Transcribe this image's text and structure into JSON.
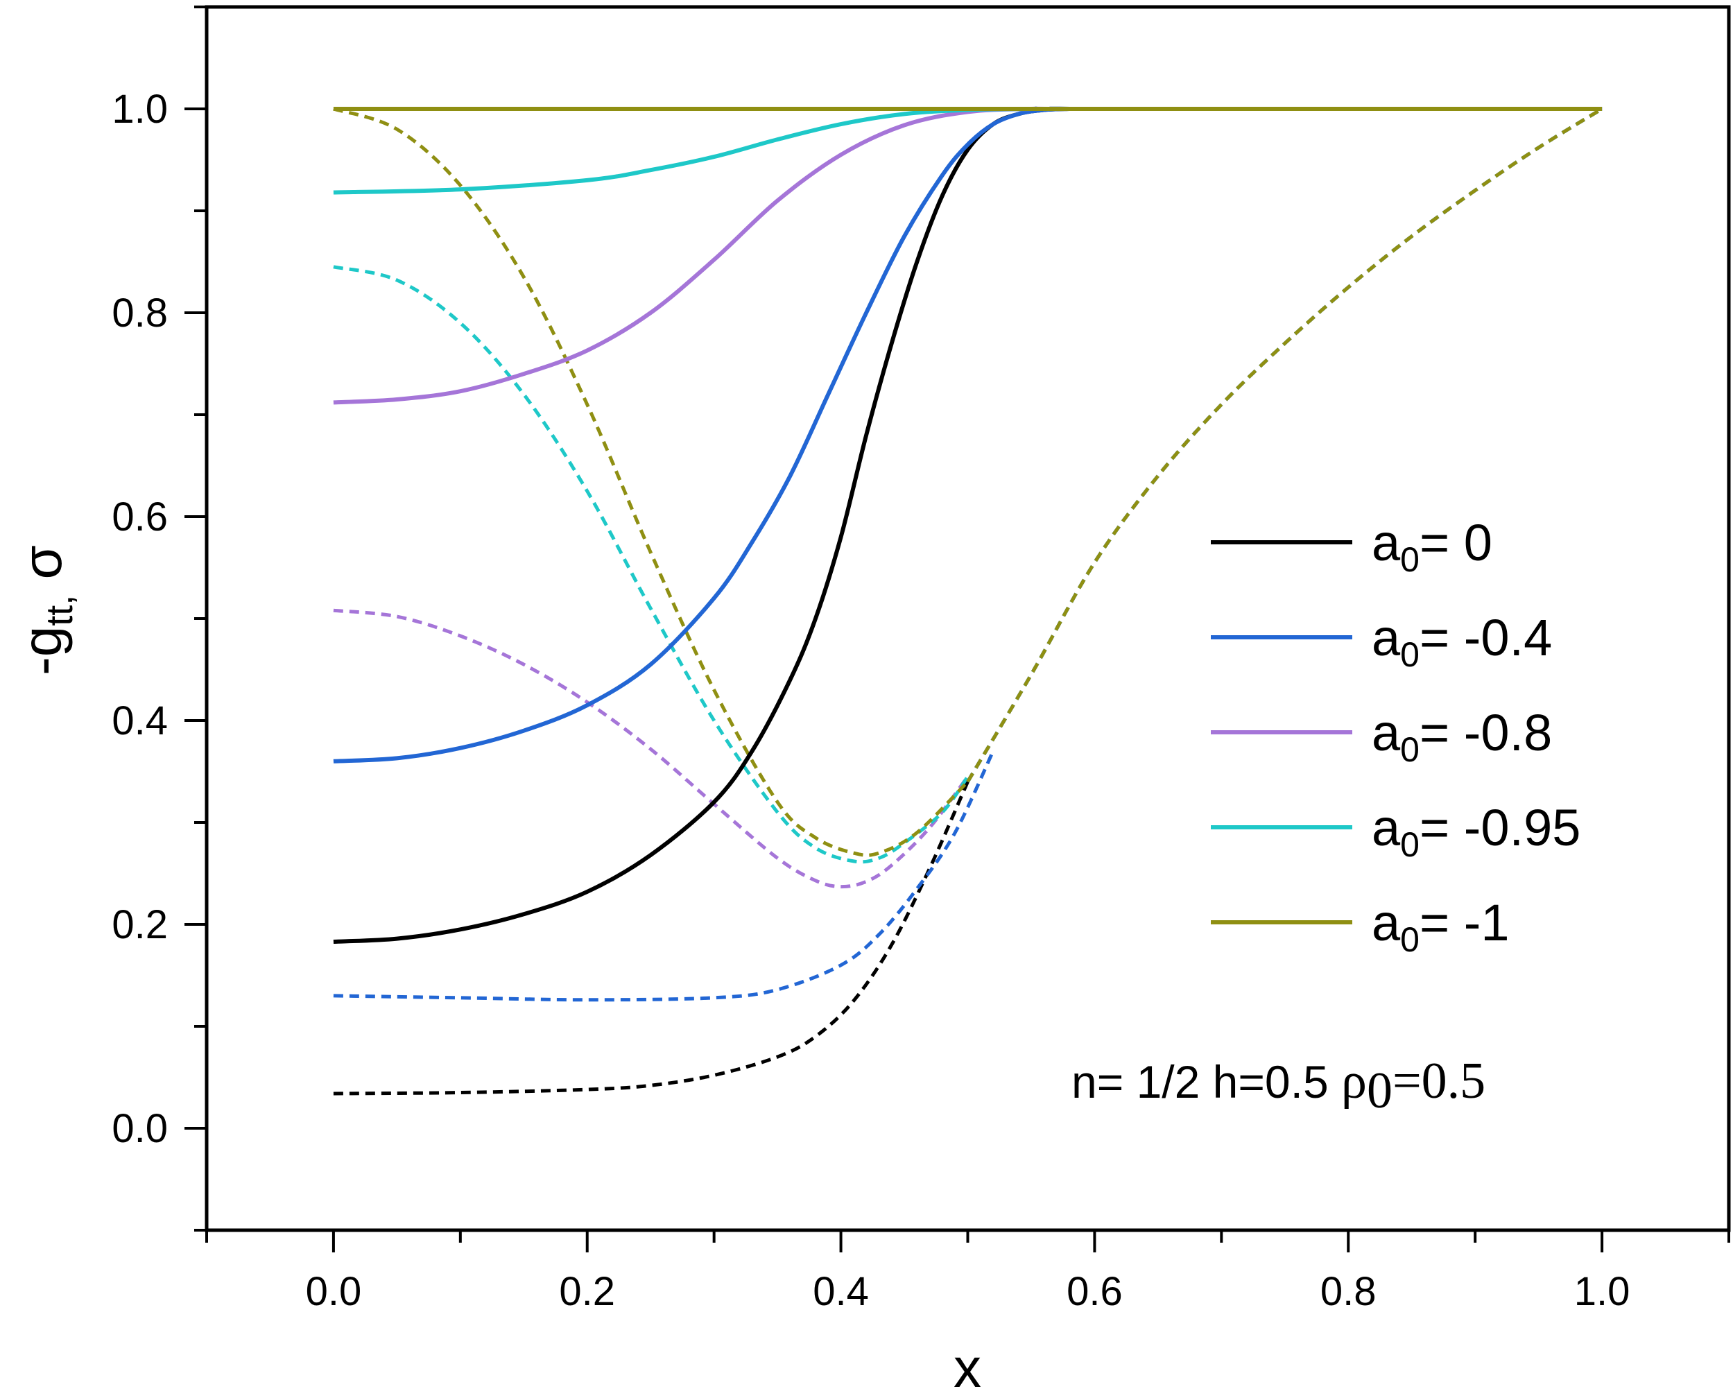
{
  "chart_data": {
    "type": "line",
    "title": "",
    "xlabel": "x",
    "ylabel": {
      "main": "-g",
      "sub": "tt,",
      "tail": " σ"
    },
    "xlim": [
      -0.1,
      1.1
    ],
    "ylim": [
      -0.1,
      1.1
    ],
    "xticks": [
      "0.0",
      "0.2",
      "0.4",
      "0.6",
      "0.8",
      "1.0"
    ],
    "yticks": [
      "0.0",
      "0.2",
      "0.4",
      "0.6",
      "0.8",
      "1.0"
    ],
    "annotation": {
      "prefix": "n= 1/2 h=0.5 ",
      "rho": "ρ",
      "rho_sub": "0",
      "rho_value": "=0.5"
    },
    "series": [
      {
        "name": "a0= 0",
        "legend_main": "a",
        "legend_sub": "0",
        "legend_value": "= 0",
        "color": "#000000",
        "solid": {
          "x": [
            0.0,
            0.05,
            0.1,
            0.15,
            0.2,
            0.25,
            0.3,
            0.33,
            0.36,
            0.38,
            0.4,
            0.42,
            0.44,
            0.46,
            0.48,
            0.5,
            0.52,
            0.54,
            0.56,
            0.58,
            0.6,
            1.0
          ],
          "y": [
            0.183,
            0.186,
            0.195,
            0.21,
            0.232,
            0.268,
            0.32,
            0.37,
            0.44,
            0.5,
            0.58,
            0.68,
            0.77,
            0.85,
            0.915,
            0.96,
            0.985,
            0.995,
            0.999,
            1.0,
            1.0,
            1.0
          ]
        },
        "dashed": {
          "x": [
            0.0,
            0.1,
            0.2,
            0.25,
            0.3,
            0.35,
            0.38,
            0.41,
            0.44,
            0.47,
            0.5
          ],
          "y": [
            0.034,
            0.035,
            0.038,
            0.042,
            0.052,
            0.07,
            0.09,
            0.125,
            0.18,
            0.255,
            0.34
          ]
        }
      },
      {
        "name": "a0= -0.4",
        "legend_main": "a",
        "legend_sub": "0",
        "legend_value": "= -0.4",
        "color": "#2266d4",
        "solid": {
          "x": [
            0.0,
            0.05,
            0.1,
            0.15,
            0.2,
            0.25,
            0.3,
            0.33,
            0.36,
            0.39,
            0.42,
            0.45,
            0.48,
            0.5,
            0.52,
            0.54,
            0.56,
            0.58,
            0.6,
            1.0
          ],
          "y": [
            0.36,
            0.363,
            0.373,
            0.39,
            0.415,
            0.455,
            0.52,
            0.575,
            0.64,
            0.72,
            0.8,
            0.875,
            0.935,
            0.965,
            0.985,
            0.995,
            0.999,
            1.0,
            1.0,
            1.0
          ]
        },
        "dashed": {
          "x": [
            0.0,
            0.1,
            0.2,
            0.3,
            0.35,
            0.4,
            0.43,
            0.46,
            0.49,
            0.52
          ],
          "y": [
            0.13,
            0.128,
            0.126,
            0.128,
            0.136,
            0.16,
            0.19,
            0.235,
            0.29,
            0.37
          ]
        }
      },
      {
        "name": "a0= -0.8",
        "legend_main": "a",
        "legend_sub": "0",
        "legend_value": "= -0.8",
        "color": "#a575d8",
        "solid": {
          "x": [
            0.0,
            0.05,
            0.1,
            0.15,
            0.2,
            0.25,
            0.3,
            0.35,
            0.4,
            0.45,
            0.5,
            0.55,
            0.6,
            1.0
          ],
          "y": [
            0.712,
            0.715,
            0.723,
            0.74,
            0.763,
            0.8,
            0.852,
            0.91,
            0.955,
            0.984,
            0.997,
            1.0,
            1.0,
            1.0
          ]
        },
        "dashed": {
          "x": [
            0.0,
            0.05,
            0.1,
            0.15,
            0.2,
            0.25,
            0.3,
            0.35,
            0.38,
            0.4,
            0.42,
            0.44,
            0.47,
            0.5
          ],
          "y": [
            0.508,
            0.502,
            0.483,
            0.455,
            0.418,
            0.372,
            0.318,
            0.265,
            0.243,
            0.237,
            0.242,
            0.258,
            0.295,
            0.345
          ]
        }
      },
      {
        "name": "a0= -0.95",
        "legend_main": "a",
        "legend_sub": "0",
        "legend_value": "= -0.95",
        "color": "#1ec8c8",
        "solid": {
          "x": [
            0.0,
            0.1,
            0.2,
            0.25,
            0.3,
            0.35,
            0.4,
            0.45,
            0.5,
            0.55,
            0.6,
            1.0
          ],
          "y": [
            0.918,
            0.921,
            0.93,
            0.94,
            0.953,
            0.97,
            0.985,
            0.995,
            0.999,
            1.0,
            1.0,
            1.0
          ]
        },
        "dashed": {
          "x": [
            0.0,
            0.05,
            0.1,
            0.15,
            0.2,
            0.25,
            0.3,
            0.35,
            0.38,
            0.41,
            0.43,
            0.45,
            0.48,
            0.5
          ],
          "y": [
            0.845,
            0.832,
            0.79,
            0.72,
            0.625,
            0.51,
            0.4,
            0.31,
            0.275,
            0.262,
            0.265,
            0.28,
            0.31,
            0.345
          ]
        }
      },
      {
        "name": "a0= -1",
        "legend_main": "a",
        "legend_sub": "0",
        "legend_value": "= -1",
        "color": "#8f8f12",
        "solid": {
          "x": [
            0.0,
            1.0
          ],
          "y": [
            1.0,
            1.0
          ]
        },
        "dashed": {
          "x": [
            0.0,
            0.05,
            0.1,
            0.15,
            0.2,
            0.25,
            0.3,
            0.35,
            0.38,
            0.41,
            0.43,
            0.46,
            0.5
          ],
          "y": [
            1.0,
            0.98,
            0.925,
            0.835,
            0.71,
            0.565,
            0.43,
            0.32,
            0.285,
            0.27,
            0.27,
            0.29,
            0.34
          ]
        }
      }
    ],
    "shared_tail": {
      "x": [
        0.5,
        0.55,
        0.6,
        0.65,
        0.7,
        0.75,
        0.8,
        0.85,
        0.9,
        0.95,
        1.0
      ],
      "y": [
        0.34,
        0.445,
        0.555,
        0.64,
        0.71,
        0.77,
        0.825,
        0.875,
        0.92,
        0.962,
        1.0
      ]
    }
  }
}
